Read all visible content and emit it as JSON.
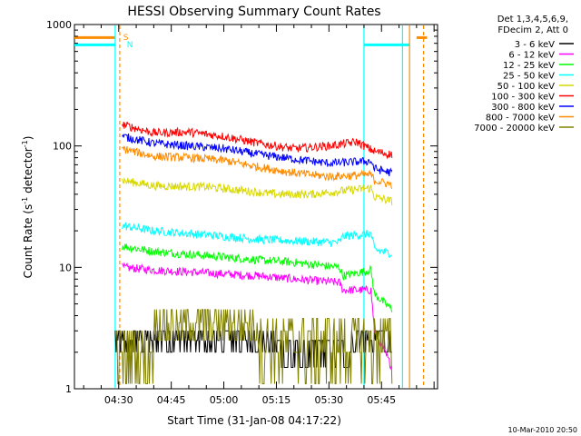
{
  "chart_data": {
    "type": "line",
    "title": "HESSI Observing Summary Count Rates",
    "xlabel": "Start Time (31-Jan-08 04:17:22)",
    "ylabel_main": "Count Rate (s",
    "ylabel_sup1": "-1",
    "ylabel_mid": " detector",
    "ylabel_sup2": "-1",
    "ylabel_end": ")",
    "y_scale": "log",
    "ylim": [
      1,
      1000
    ],
    "xlim": [
      "04:17:22",
      "06:01:00"
    ],
    "x_ticks": [
      "04:30",
      "04:45",
      "05:00",
      "05:15",
      "05:30",
      "05:45"
    ],
    "y_ticks": [
      "1",
      "10",
      "100",
      "1000"
    ],
    "grid": false,
    "legend_position": "top-right",
    "legend_header": [
      "Det 1,3,4,5,6,9,",
      "FDecim 2, Att 0"
    ],
    "series": [
      {
        "name": "3 - 6 keV",
        "color": "#000000",
        "segments": [
          {
            "x": [
              "04:29",
              "05:48"
            ],
            "y": [
              2.2,
              2.2
            ],
            "note_style": "noisy"
          }
        ]
      },
      {
        "name": "6 - 12 keV",
        "color": "#ff00ff",
        "x": [
          "04:31",
          "04:40",
          "04:55",
          "05:10",
          "05:20",
          "05:33",
          "05:34",
          "05:42",
          "05:43",
          "05:48"
        ],
        "y": [
          10,
          9.5,
          9,
          8.5,
          8,
          7.5,
          6.5,
          6.5,
          3,
          1.5
        ]
      },
      {
        "name": "12 - 25 keV",
        "color": "#00ff00",
        "x": [
          "04:31",
          "04:40",
          "04:55",
          "05:10",
          "05:20",
          "05:33",
          "05:34",
          "05:42",
          "05:43",
          "05:48"
        ],
        "y": [
          15,
          13.5,
          12.5,
          11.5,
          11,
          10,
          8.5,
          9.5,
          6,
          4.5
        ]
      },
      {
        "name": "25 - 50 keV",
        "color": "#00ffff",
        "x": [
          "04:31",
          "04:40",
          "04:55",
          "05:10",
          "05:20",
          "05:33",
          "05:34",
          "05:42",
          "05:43",
          "05:48"
        ],
        "y": [
          22,
          20,
          18.5,
          17,
          16.5,
          16,
          18,
          19,
          14,
          13
        ]
      },
      {
        "name": "50 - 100 keV",
        "color": "#d8d800",
        "x": [
          "04:31",
          "04:40",
          "04:55",
          "05:05",
          "05:15",
          "05:25",
          "05:35",
          "05:42",
          "05:43",
          "05:48"
        ],
        "y": [
          52,
          47,
          46,
          43,
          40,
          40,
          43,
          45,
          38,
          35
        ]
      },
      {
        "name": "100 - 300 keV",
        "color": "#ff0000",
        "x": [
          "04:31",
          "04:40",
          "04:50",
          "05:00",
          "05:10",
          "05:20",
          "05:30",
          "05:38",
          "05:43",
          "05:48"
        ],
        "y": [
          150,
          128,
          130,
          120,
          105,
          95,
          100,
          108,
          90,
          85
        ]
      },
      {
        "name": "300 - 800 keV",
        "color": "#0000ff",
        "x": [
          "04:31",
          "04:40",
          "04:50",
          "05:00",
          "05:10",
          "05:20",
          "05:30",
          "05:42",
          "05:43",
          "05:48"
        ],
        "y": [
          120,
          105,
          100,
          95,
          85,
          78,
          72,
          75,
          65,
          60
        ]
      },
      {
        "name": "800 - 7000 keV",
        "color": "#ff8c00",
        "x": [
          "04:31",
          "04:40",
          "04:50",
          "05:00",
          "05:10",
          "05:20",
          "05:30",
          "05:42",
          "05:43",
          "05:48"
        ],
        "y": [
          95,
          82,
          80,
          76,
          67,
          60,
          56,
          58,
          52,
          48
        ]
      },
      {
        "name": "7000 - 20000 keV",
        "color": "#808000",
        "segments": [
          {
            "x": [
              "04:29",
              "05:48"
            ],
            "y": [
              2.5,
              2.5
            ],
            "note_style": "noisy"
          }
        ]
      }
    ],
    "annotations": [
      {
        "text": "S",
        "color": "#ff8c00",
        "x": "04:30"
      },
      {
        "text": "N",
        "color": "#00ffff",
        "x": "04:30"
      }
    ],
    "timestamp": "10-Mar-2010 20:50"
  }
}
